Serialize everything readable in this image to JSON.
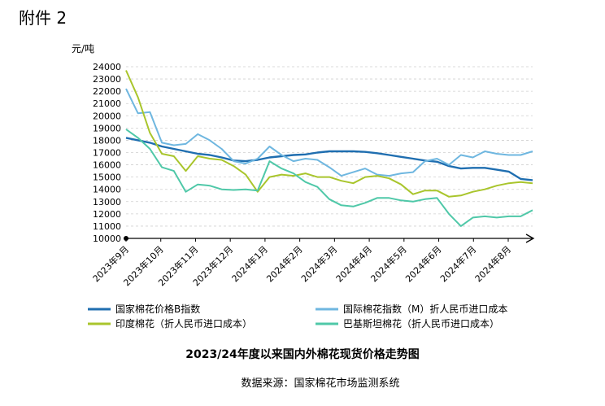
{
  "page": {
    "attachment_label": "附件 2",
    "source": "数据来源：国家棉花市场监测系统"
  },
  "chart_data": {
    "type": "line",
    "title": "2023/24年度以来国内外棉花现货价格走势图",
    "ylabel": "元/吨",
    "ylim": [
      10000,
      24000
    ],
    "yticks": [
      10000,
      11000,
      12000,
      13000,
      14000,
      15000,
      16000,
      17000,
      18000,
      19000,
      20000,
      21000,
      22000,
      23000,
      24000
    ],
    "x_categories": [
      "2023年9月",
      "2023年10月",
      "2023年11月",
      "2023年12月",
      "2024年1月",
      "2024年2月",
      "2024年3月",
      "2024年4月",
      "2024年5月",
      "2024年6月",
      "2024年7月",
      "2024年8月"
    ],
    "grid": "horizontal dashed",
    "legend_position": "bottom",
    "colors": {
      "china_index": "#1f6eb0",
      "intl_index": "#6fb7e0",
      "india": "#a9c52c",
      "pakistan": "#4fc8a8"
    },
    "series": [
      {
        "name": "国家棉花价格B指数",
        "color_key": "china_index",
        "points": [
          [
            "2023年9月",
            18200
          ],
          [
            "2023年9月下",
            18000
          ],
          [
            "2023年10月",
            17800
          ],
          [
            "2023年10月中",
            17500
          ],
          [
            "2023年10月下",
            17300
          ],
          [
            "2023年11月",
            17100
          ],
          [
            "2023年11月中",
            16900
          ],
          [
            "2023年11月下",
            16800
          ],
          [
            "2023年12月",
            16600
          ],
          [
            "2023年12月中",
            16350
          ],
          [
            "2023年12月下",
            16300
          ],
          [
            "2024年1月",
            16400
          ],
          [
            "2024年1月中",
            16600
          ],
          [
            "2024年1月下",
            16700
          ],
          [
            "2024年2月",
            16800
          ],
          [
            "2024年2月中",
            16850
          ],
          [
            "2024年3月",
            17000
          ],
          [
            "2024年3月中",
            17100
          ],
          [
            "2024年3月下",
            17100
          ],
          [
            "2024年4月",
            17100
          ],
          [
            "2024年4月中",
            17050
          ],
          [
            "2024年4月下",
            16950
          ],
          [
            "2024年5月",
            16800
          ],
          [
            "2024年5月中",
            16650
          ],
          [
            "2024年5月下",
            16500
          ],
          [
            "2024年6月",
            16350
          ],
          [
            "2024年6月中",
            16250
          ],
          [
            "2024年6月下",
            15900
          ],
          [
            "2024年7月",
            15700
          ],
          [
            "2024年7月中",
            15750
          ],
          [
            "2024年7月下",
            15750
          ],
          [
            "2024年8月",
            15600
          ],
          [
            "2024年8月中",
            15450
          ],
          [
            "2024年8月下",
            14850
          ],
          [
            "2024年8月末",
            14750
          ]
        ]
      },
      {
        "name": "国际棉花指数（M）折人民币进口成本",
        "color_key": "intl_index",
        "points": [
          [
            "2023年9月",
            22200
          ],
          [
            "2023年9月下",
            20200
          ],
          [
            "2023年10月",
            20300
          ],
          [
            "2023年10月中",
            17800
          ],
          [
            "2023年10月下",
            17600
          ],
          [
            "2023年11月",
            17700
          ],
          [
            "2023年11月中",
            18500
          ],
          [
            "2023年11月下",
            18000
          ],
          [
            "2023年12月",
            17300
          ],
          [
            "2023年12月中",
            16300
          ],
          [
            "2023年12月下",
            16100
          ],
          [
            "2024年1月",
            16500
          ],
          [
            "2024年1月中",
            17500
          ],
          [
            "2024年1月下",
            16800
          ],
          [
            "2024年2月",
            16300
          ],
          [
            "2024年2月中",
            16500
          ],
          [
            "2024年3月",
            16400
          ],
          [
            "2024年3月中",
            15800
          ],
          [
            "2024年3月下",
            15100
          ],
          [
            "2024年4月",
            15400
          ],
          [
            "2024年4月中",
            15700
          ],
          [
            "2024年4月下",
            15200
          ],
          [
            "2024年5月",
            15100
          ],
          [
            "2024年5月中",
            15300
          ],
          [
            "2024年5月下",
            15400
          ],
          [
            "2024年6月",
            16300
          ],
          [
            "2024年6月中",
            16500
          ],
          [
            "2024年6月下",
            16000
          ],
          [
            "2024年7月",
            16800
          ],
          [
            "2024年7月中",
            16600
          ],
          [
            "2024年7月下",
            17100
          ],
          [
            "2024年8月",
            16900
          ],
          [
            "2024年8月中",
            16800
          ],
          [
            "2024年8月下",
            16800
          ],
          [
            "2024年8月末",
            17100
          ]
        ]
      },
      {
        "name": "印度棉花（折人民币进口成本）",
        "color_key": "india",
        "points": [
          [
            "2023年9月",
            23700
          ],
          [
            "2023年9月下",
            21500
          ],
          [
            "2023年10月",
            18600
          ],
          [
            "2023年10月中",
            16900
          ],
          [
            "2023年10月下",
            16700
          ],
          [
            "2023年11月",
            15500
          ],
          [
            "2023年11月中",
            16700
          ],
          [
            "2023年11月下",
            16500
          ],
          [
            "2023年12月",
            16400
          ],
          [
            "2023年12月中",
            15900
          ],
          [
            "2023年12月下",
            15200
          ],
          [
            "2024年1月",
            13800
          ],
          [
            "2024年1月中",
            15000
          ],
          [
            "2024年1月下",
            15200
          ],
          [
            "2024年2月",
            15100
          ],
          [
            "2024年2月中",
            15300
          ],
          [
            "2024年3月",
            15000
          ],
          [
            "2024年3月中",
            15000
          ],
          [
            "2024年3月下",
            14700
          ],
          [
            "2024年4月",
            14500
          ],
          [
            "2024年4月中",
            15000
          ],
          [
            "2024年4月下",
            15100
          ],
          [
            "2024年5月",
            14900
          ],
          [
            "2024年5月中",
            14400
          ],
          [
            "2024年5月下",
            13600
          ],
          [
            "2024年6月",
            13900
          ],
          [
            "2024年6月中",
            13900
          ],
          [
            "2024年6月下",
            13400
          ],
          [
            "2024年7月",
            13500
          ],
          [
            "2024年7月中",
            13800
          ],
          [
            "2024年7月下",
            14000
          ],
          [
            "2024年8月",
            14300
          ],
          [
            "2024年8月中",
            14500
          ],
          [
            "2024年8月下",
            14600
          ],
          [
            "2024年8月末",
            14500
          ]
        ]
      },
      {
        "name": "巴基斯坦棉花（折人民币进口成本）",
        "color_key": "pakistan",
        "points": [
          [
            "2023年9月",
            18900
          ],
          [
            "2023年9月下",
            18200
          ],
          [
            "2023年10月",
            17300
          ],
          [
            "2023年10月中",
            15800
          ],
          [
            "2023年10月下",
            15500
          ],
          [
            "2023年11月",
            13800
          ],
          [
            "2023年11月中",
            14400
          ],
          [
            "2023年11月下",
            14300
          ],
          [
            "2023年12月",
            14000
          ],
          [
            "2023年12月中",
            13950
          ],
          [
            "2023年12月下",
            14000
          ],
          [
            "2024年1月",
            13900
          ],
          [
            "2024年1月中",
            16300
          ],
          [
            "2024年1月下",
            15700
          ],
          [
            "2024年2月",
            15300
          ],
          [
            "2024年2月中",
            14600
          ],
          [
            "2024年3月",
            14200
          ],
          [
            "2024年3月中",
            13200
          ],
          [
            "2024年3月下",
            12700
          ],
          [
            "2024年4月",
            12600
          ],
          [
            "2024年4月中",
            12900
          ],
          [
            "2024年4月下",
            13300
          ],
          [
            "2024年5月",
            13300
          ],
          [
            "2024年5月中",
            13100
          ],
          [
            "2024年5月下",
            13000
          ],
          [
            "2024年6月",
            13200
          ],
          [
            "2024年6月中",
            13300
          ],
          [
            "2024年6月下",
            12000
          ],
          [
            "2024年7月",
            11000
          ],
          [
            "2024年7月中",
            11700
          ],
          [
            "2024年7月下",
            11800
          ],
          [
            "2024年8月",
            11700
          ],
          [
            "2024年8月中",
            11800
          ],
          [
            "2024年8月下",
            11800
          ],
          [
            "2024年8月末",
            12300
          ]
        ]
      }
    ]
  }
}
